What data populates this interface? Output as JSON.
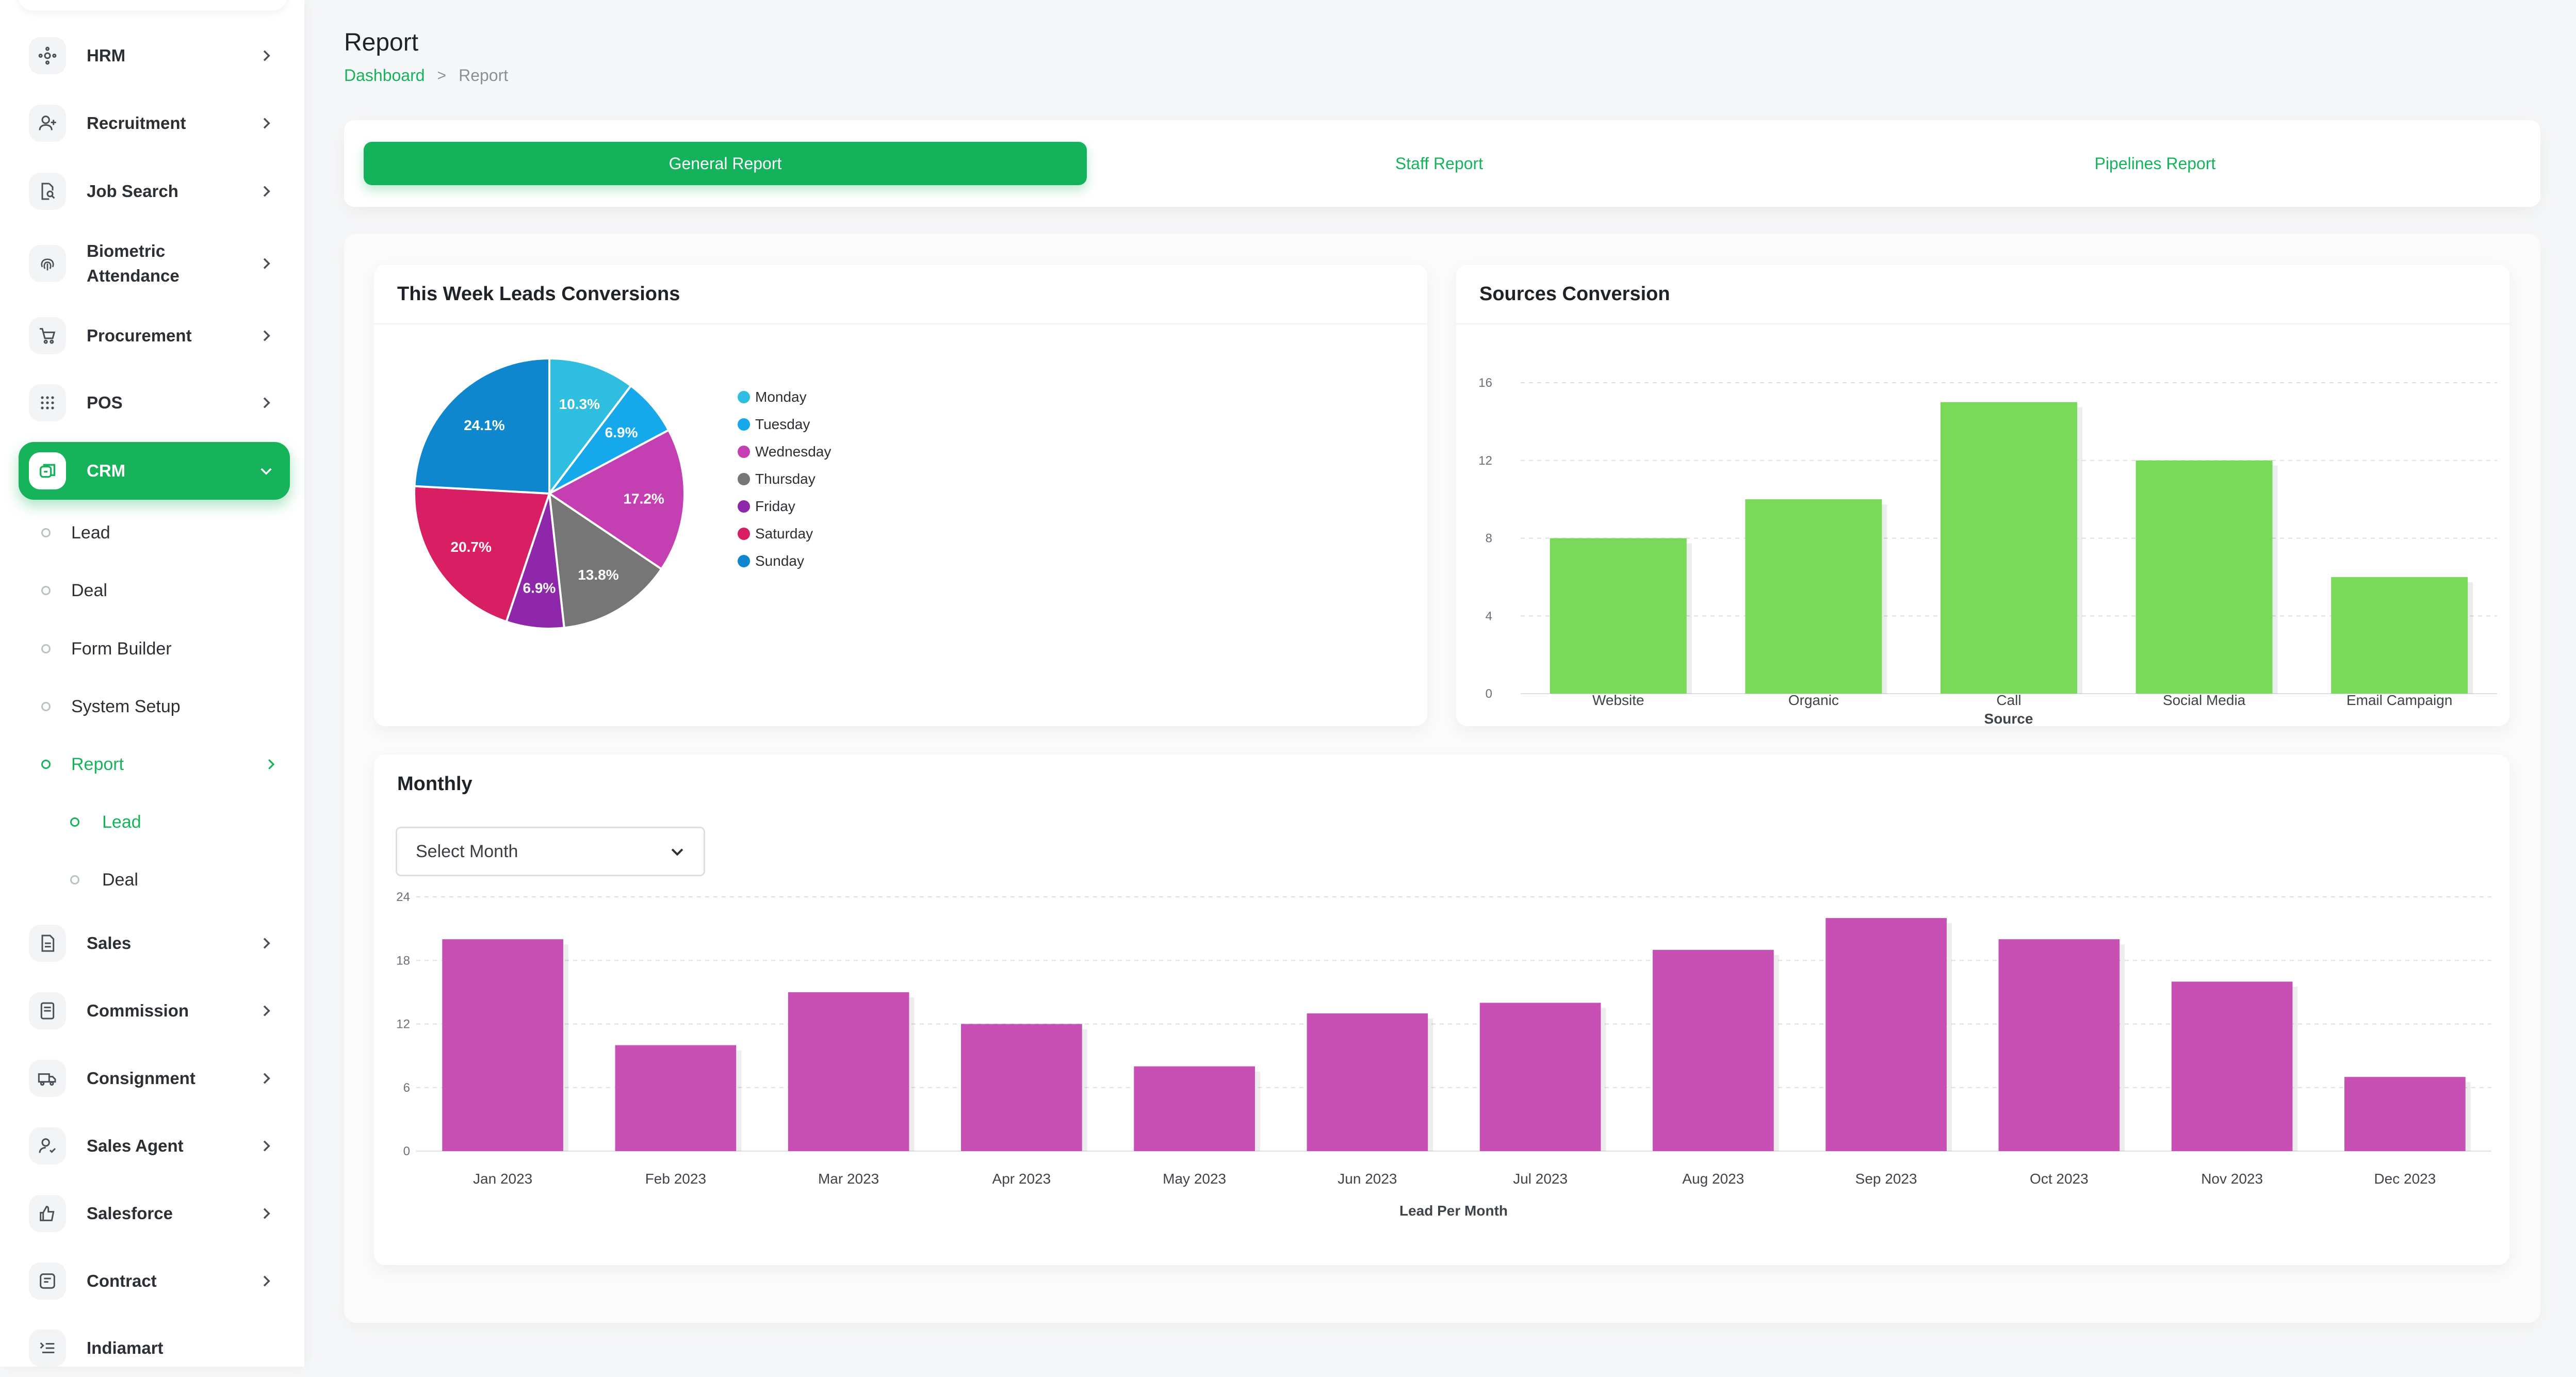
{
  "sidebar": {
    "items": [
      {
        "label": "HRM",
        "icon": "hrm-icon"
      },
      {
        "label": "Recruitment",
        "icon": "recruitment-icon"
      },
      {
        "label": "Job Search",
        "icon": "job-search-icon"
      },
      {
        "label": "Biometric Attendance",
        "icon": "fingerprint-icon"
      },
      {
        "label": "Procurement",
        "icon": "procurement-icon"
      },
      {
        "label": "POS",
        "icon": "pos-grid-icon"
      },
      {
        "label": "CRM",
        "icon": "crm-icon"
      },
      {
        "label": "Sales",
        "icon": "sales-icon"
      },
      {
        "label": "Commission",
        "icon": "commission-icon"
      },
      {
        "label": "Consignment",
        "icon": "consignment-icon"
      },
      {
        "label": "Sales Agent",
        "icon": "sales-agent-icon"
      },
      {
        "label": "Salesforce",
        "icon": "thumbs-up-icon"
      },
      {
        "label": "Contract",
        "icon": "contract-icon"
      },
      {
        "label": "Indiamart",
        "icon": "list-icon"
      }
    ],
    "crm_sub": [
      "Lead",
      "Deal",
      "Form Builder",
      "System Setup",
      "Report"
    ],
    "report_sub": [
      "Lead",
      "Deal"
    ]
  },
  "header": {
    "title": "Report",
    "breadcrumb": {
      "home": "Dashboard",
      "separator": ">",
      "current": "Report"
    }
  },
  "tabs": [
    "General Report",
    "Staff Report",
    "Pipelines Report"
  ],
  "weekly": {
    "title": "This Week Leads Conversions"
  },
  "sources": {
    "title": "Sources Conversion"
  },
  "monthly": {
    "title": "Monthly",
    "select_placeholder": "Select Month"
  },
  "colors": {
    "accent": "#16b35a",
    "bar_green": "#7ad95a",
    "bar_magenta": "#c850b4"
  },
  "chart_data": [
    {
      "type": "pie",
      "title": "This Week Leads Conversions",
      "categories": [
        "Monday",
        "Tuesday",
        "Wednesday",
        "Thursday",
        "Friday",
        "Saturday",
        "Sunday"
      ],
      "values": [
        10.3,
        6.9,
        17.2,
        13.8,
        6.9,
        20.7,
        24.1
      ],
      "labels": [
        "10.3%",
        "6.9%",
        "17.2%",
        "13.8%",
        "6.9%",
        "20.7%",
        "24.1%"
      ],
      "colors": [
        "#2fbde0",
        "#15a9ec",
        "#c43fb2",
        "#767676",
        "#8e27a9",
        "#d91f63",
        "#0e87cf"
      ],
      "legend": "right"
    },
    {
      "type": "bar",
      "title": "Sources Conversion",
      "categories": [
        "Website",
        "Organic",
        "Call",
        "Social Media",
        "Email Campaign"
      ],
      "values": [
        8,
        10,
        15,
        12,
        6
      ],
      "xlabel": "Source",
      "ylabel": "",
      "ylim": [
        0,
        16
      ],
      "yticks": [
        "0",
        "4",
        "8",
        "12",
        "16"
      ],
      "grid": true
    },
    {
      "type": "bar",
      "title": "Monthly",
      "categories": [
        "Jan 2023",
        "Feb 2023",
        "Mar 2023",
        "Apr 2023",
        "May 2023",
        "Jun 2023",
        "Jul 2023",
        "Aug 2023",
        "Sep 2023",
        "Oct 2023",
        "Nov 2023",
        "Dec 2023"
      ],
      "values": [
        20,
        10,
        15,
        12,
        8,
        13,
        14,
        19,
        22,
        20,
        16,
        7
      ],
      "xlabel": "Lead Per Month",
      "ylabel": "",
      "ylim": [
        0,
        24
      ],
      "yticks": [
        "0",
        "6",
        "12",
        "18",
        "24"
      ],
      "grid": true
    }
  ]
}
